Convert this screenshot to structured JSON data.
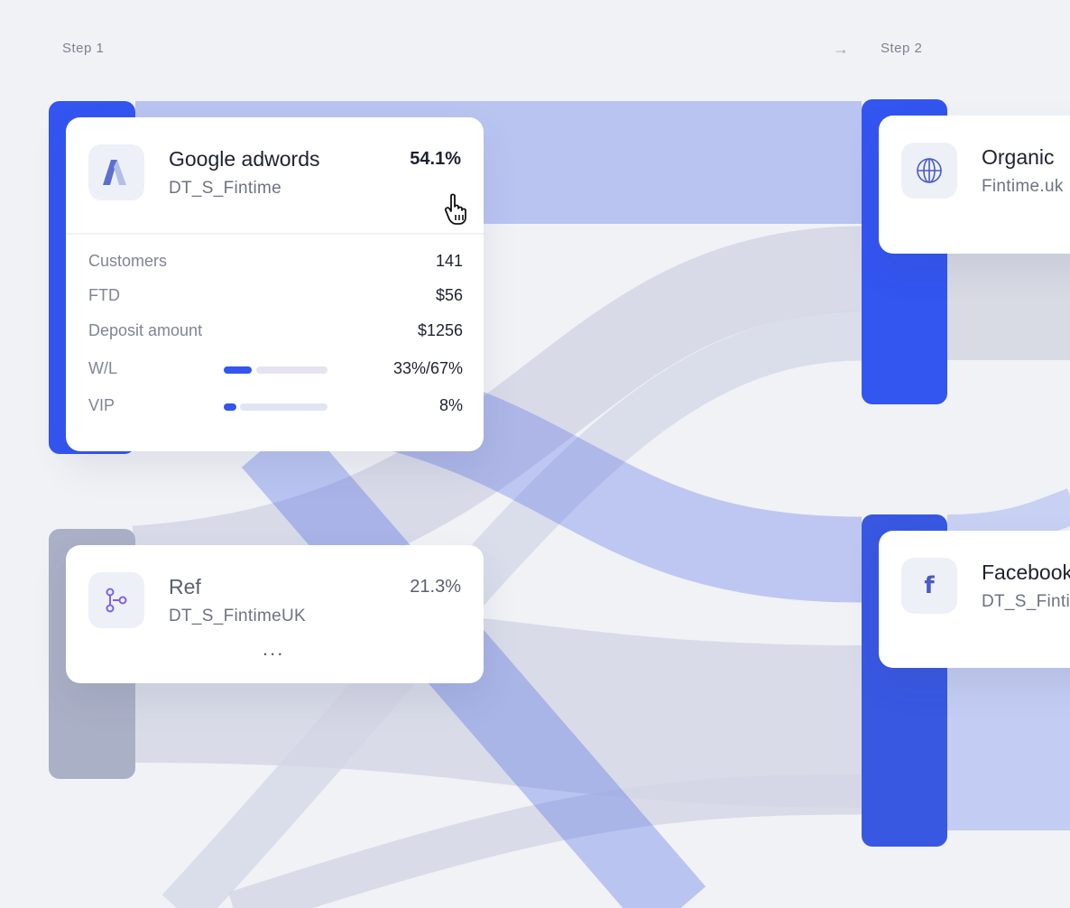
{
  "steps": {
    "step1": "Step 1",
    "step2": "Step 2",
    "arrow": "→"
  },
  "colors": {
    "accent": "#3355f0",
    "inactive_bar": "#aab0c6",
    "flow_blue": "#3d5ae6",
    "flow_gray": "#c9cde0",
    "background": "#f0f2f6"
  },
  "step1_nodes": [
    {
      "title": "Google adwords",
      "subtitle": "DT_S_Fintime",
      "percent": "54.1%",
      "icon": "google-ads-icon",
      "metrics": [
        {
          "label": "Customers",
          "value": "141"
        },
        {
          "label": "FTD",
          "value": "$56"
        },
        {
          "label": "Deposit amount",
          "value": "$1256"
        },
        {
          "label": "W/L",
          "value": "33%/67%",
          "fill_percent": 33
        },
        {
          "label": "VIP",
          "value": "8%",
          "fill_percent": 8
        }
      ]
    },
    {
      "title": "Ref",
      "subtitle": "DT_S_FintimeUK",
      "percent": "21.3%",
      "icon": "share-nodes-icon",
      "more": "..."
    }
  ],
  "step2_nodes": [
    {
      "title": "Organic",
      "subtitle": "Fintime.uk",
      "icon": "globe-icon"
    },
    {
      "title": "Facebook",
      "subtitle": "DT_S_Fintime",
      "icon": "facebook-icon"
    }
  ]
}
